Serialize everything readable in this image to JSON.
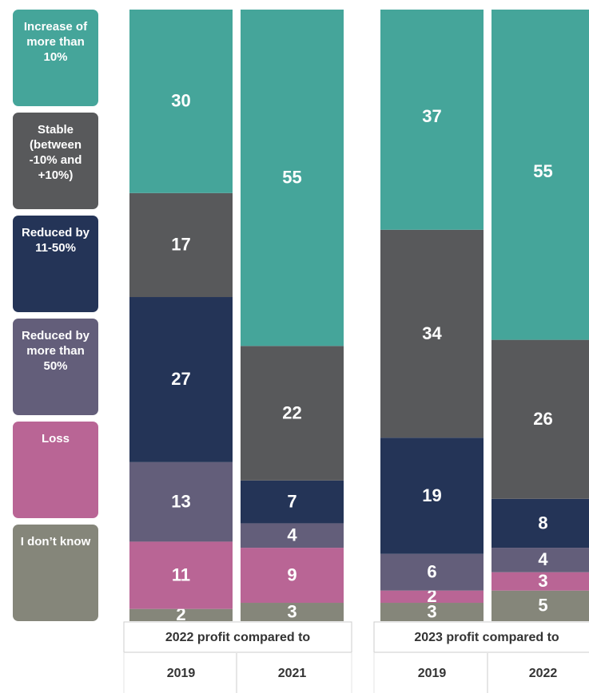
{
  "chart_data": {
    "type": "stacked_bar",
    "groups": [
      "2022 profit compared to",
      "2023 profit compared to"
    ],
    "categories": [
      "2019",
      "2021",
      "2019",
      "2022"
    ],
    "ylim": [
      0,
      100
    ],
    "series": [
      {
        "name": "Increase of more than 10%",
        "color": "#45a59a",
        "values": [
          30,
          55,
          37,
          55
        ]
      },
      {
        "name": "Stable (between -10% and +10%)",
        "color": "#58595b",
        "values": [
          17,
          22,
          34,
          26
        ]
      },
      {
        "name": "Reduced by 11-50%",
        "color": "#243457",
        "values": [
          27,
          7,
          19,
          8
        ]
      },
      {
        "name": "Reduced by more than 50%",
        "color": "#635e7a",
        "values": [
          13,
          4,
          6,
          4
        ]
      },
      {
        "name": "Loss",
        "color": "#b96595",
        "values": [
          11,
          9,
          2,
          3
        ]
      },
      {
        "name": "I don’t know",
        "color": "#85867a",
        "values": [
          2,
          3,
          3,
          5
        ]
      }
    ]
  }
}
